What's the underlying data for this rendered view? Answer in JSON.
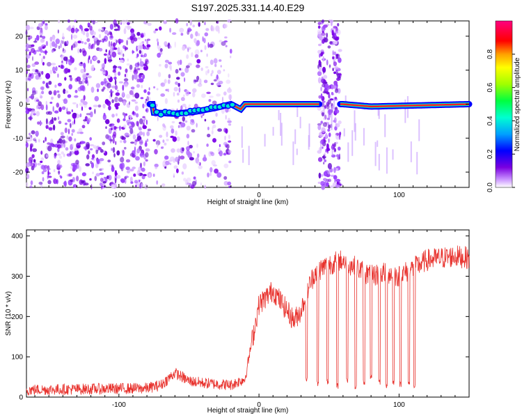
{
  "title": "S197.2025.331.14.40.E29",
  "chart_data": [
    {
      "type": "heatmap",
      "name": "spectrogram",
      "xlabel": "Height of straight line (km)",
      "ylabel": "Frequency (Hz)",
      "xlim": [
        -166,
        150
      ],
      "ylim": [
        -24.5,
        24.5
      ],
      "xticks": [
        -100,
        0,
        100
      ],
      "yticks": [
        -20,
        -10,
        0,
        10,
        20
      ],
      "colorbar": {
        "label": "Normalized spectral amplitude",
        "range": [
          0,
          1
        ],
        "ticks": [
          0.0,
          0.2,
          0.4,
          0.6,
          0.8
        ]
      },
      "ridge": {
        "description_points": [
          {
            "x": -75,
            "y": -2.5
          },
          {
            "x": -60,
            "y": -2.8
          },
          {
            "x": -45,
            "y": -2.2
          },
          {
            "x": -30,
            "y": -1.0
          },
          {
            "x": -20,
            "y": 0.0
          },
          {
            "x": -13,
            "y": -1.5
          },
          {
            "x": -10,
            "y": 0.0
          },
          {
            "x": 0,
            "y": 0.0
          },
          {
            "x": 40,
            "y": 0.0
          },
          {
            "x": 60,
            "y": 0.0
          },
          {
            "x": 80,
            "y": -0.7
          },
          {
            "x": 100,
            "y": -0.5
          },
          {
            "x": 150,
            "y": 0.0
          }
        ],
        "ridge_segments": [
          [
            -78,
            43
          ],
          [
            58,
            150
          ]
        ]
      },
      "noise_regions": [
        [
          -166,
          -78
        ],
        [
          -75,
          -20
        ],
        [
          43,
          58
        ]
      ]
    },
    {
      "type": "line",
      "name": "snr",
      "xlabel": "Height of straight line (km)",
      "ylabel": "SNR (10 * v/v)",
      "xlim": [
        -166,
        150
      ],
      "ylim": [
        0,
        415
      ],
      "xticks": [
        -100,
        0,
        100
      ],
      "yticks": [
        0,
        100,
        200,
        300,
        400
      ],
      "color": "#e8312c",
      "profile": [
        {
          "x": -166,
          "y": 18
        },
        {
          "x": -80,
          "y": 22
        },
        {
          "x": -70,
          "y": 30
        },
        {
          "x": -60,
          "y": 60
        },
        {
          "x": -50,
          "y": 40
        },
        {
          "x": -40,
          "y": 35
        },
        {
          "x": -20,
          "y": 30
        },
        {
          "x": -10,
          "y": 45
        },
        {
          "x": -6,
          "y": 120
        },
        {
          "x": 0,
          "y": 230
        },
        {
          "x": 10,
          "y": 265
        },
        {
          "x": 15,
          "y": 240
        },
        {
          "x": 20,
          "y": 215
        },
        {
          "x": 25,
          "y": 190
        },
        {
          "x": 30,
          "y": 215
        },
        {
          "x": 35,
          "y": 270
        },
        {
          "x": 40,
          "y": 310
        },
        {
          "x": 50,
          "y": 330
        },
        {
          "x": 60,
          "y": 340
        },
        {
          "x": 70,
          "y": 320
        },
        {
          "x": 80,
          "y": 300
        },
        {
          "x": 90,
          "y": 310
        },
        {
          "x": 100,
          "y": 300
        },
        {
          "x": 110,
          "y": 320
        },
        {
          "x": 120,
          "y": 340
        },
        {
          "x": 130,
          "y": 345
        },
        {
          "x": 140,
          "y": 350
        },
        {
          "x": 150,
          "y": 345
        }
      ],
      "dropouts": [
        {
          "x": 34,
          "y": 35
        },
        {
          "x": 42,
          "y": 25
        },
        {
          "x": 49,
          "y": 30
        },
        {
          "x": 56,
          "y": 20
        },
        {
          "x": 63,
          "y": 35
        },
        {
          "x": 69,
          "y": 20
        },
        {
          "x": 75,
          "y": 30
        },
        {
          "x": 80,
          "y": 40
        },
        {
          "x": 86,
          "y": 30
        },
        {
          "x": 91,
          "y": 20
        },
        {
          "x": 96,
          "y": 30
        },
        {
          "x": 101,
          "y": 25
        },
        {
          "x": 107,
          "y": 30
        },
        {
          "x": 111,
          "y": 20
        }
      ]
    }
  ]
}
